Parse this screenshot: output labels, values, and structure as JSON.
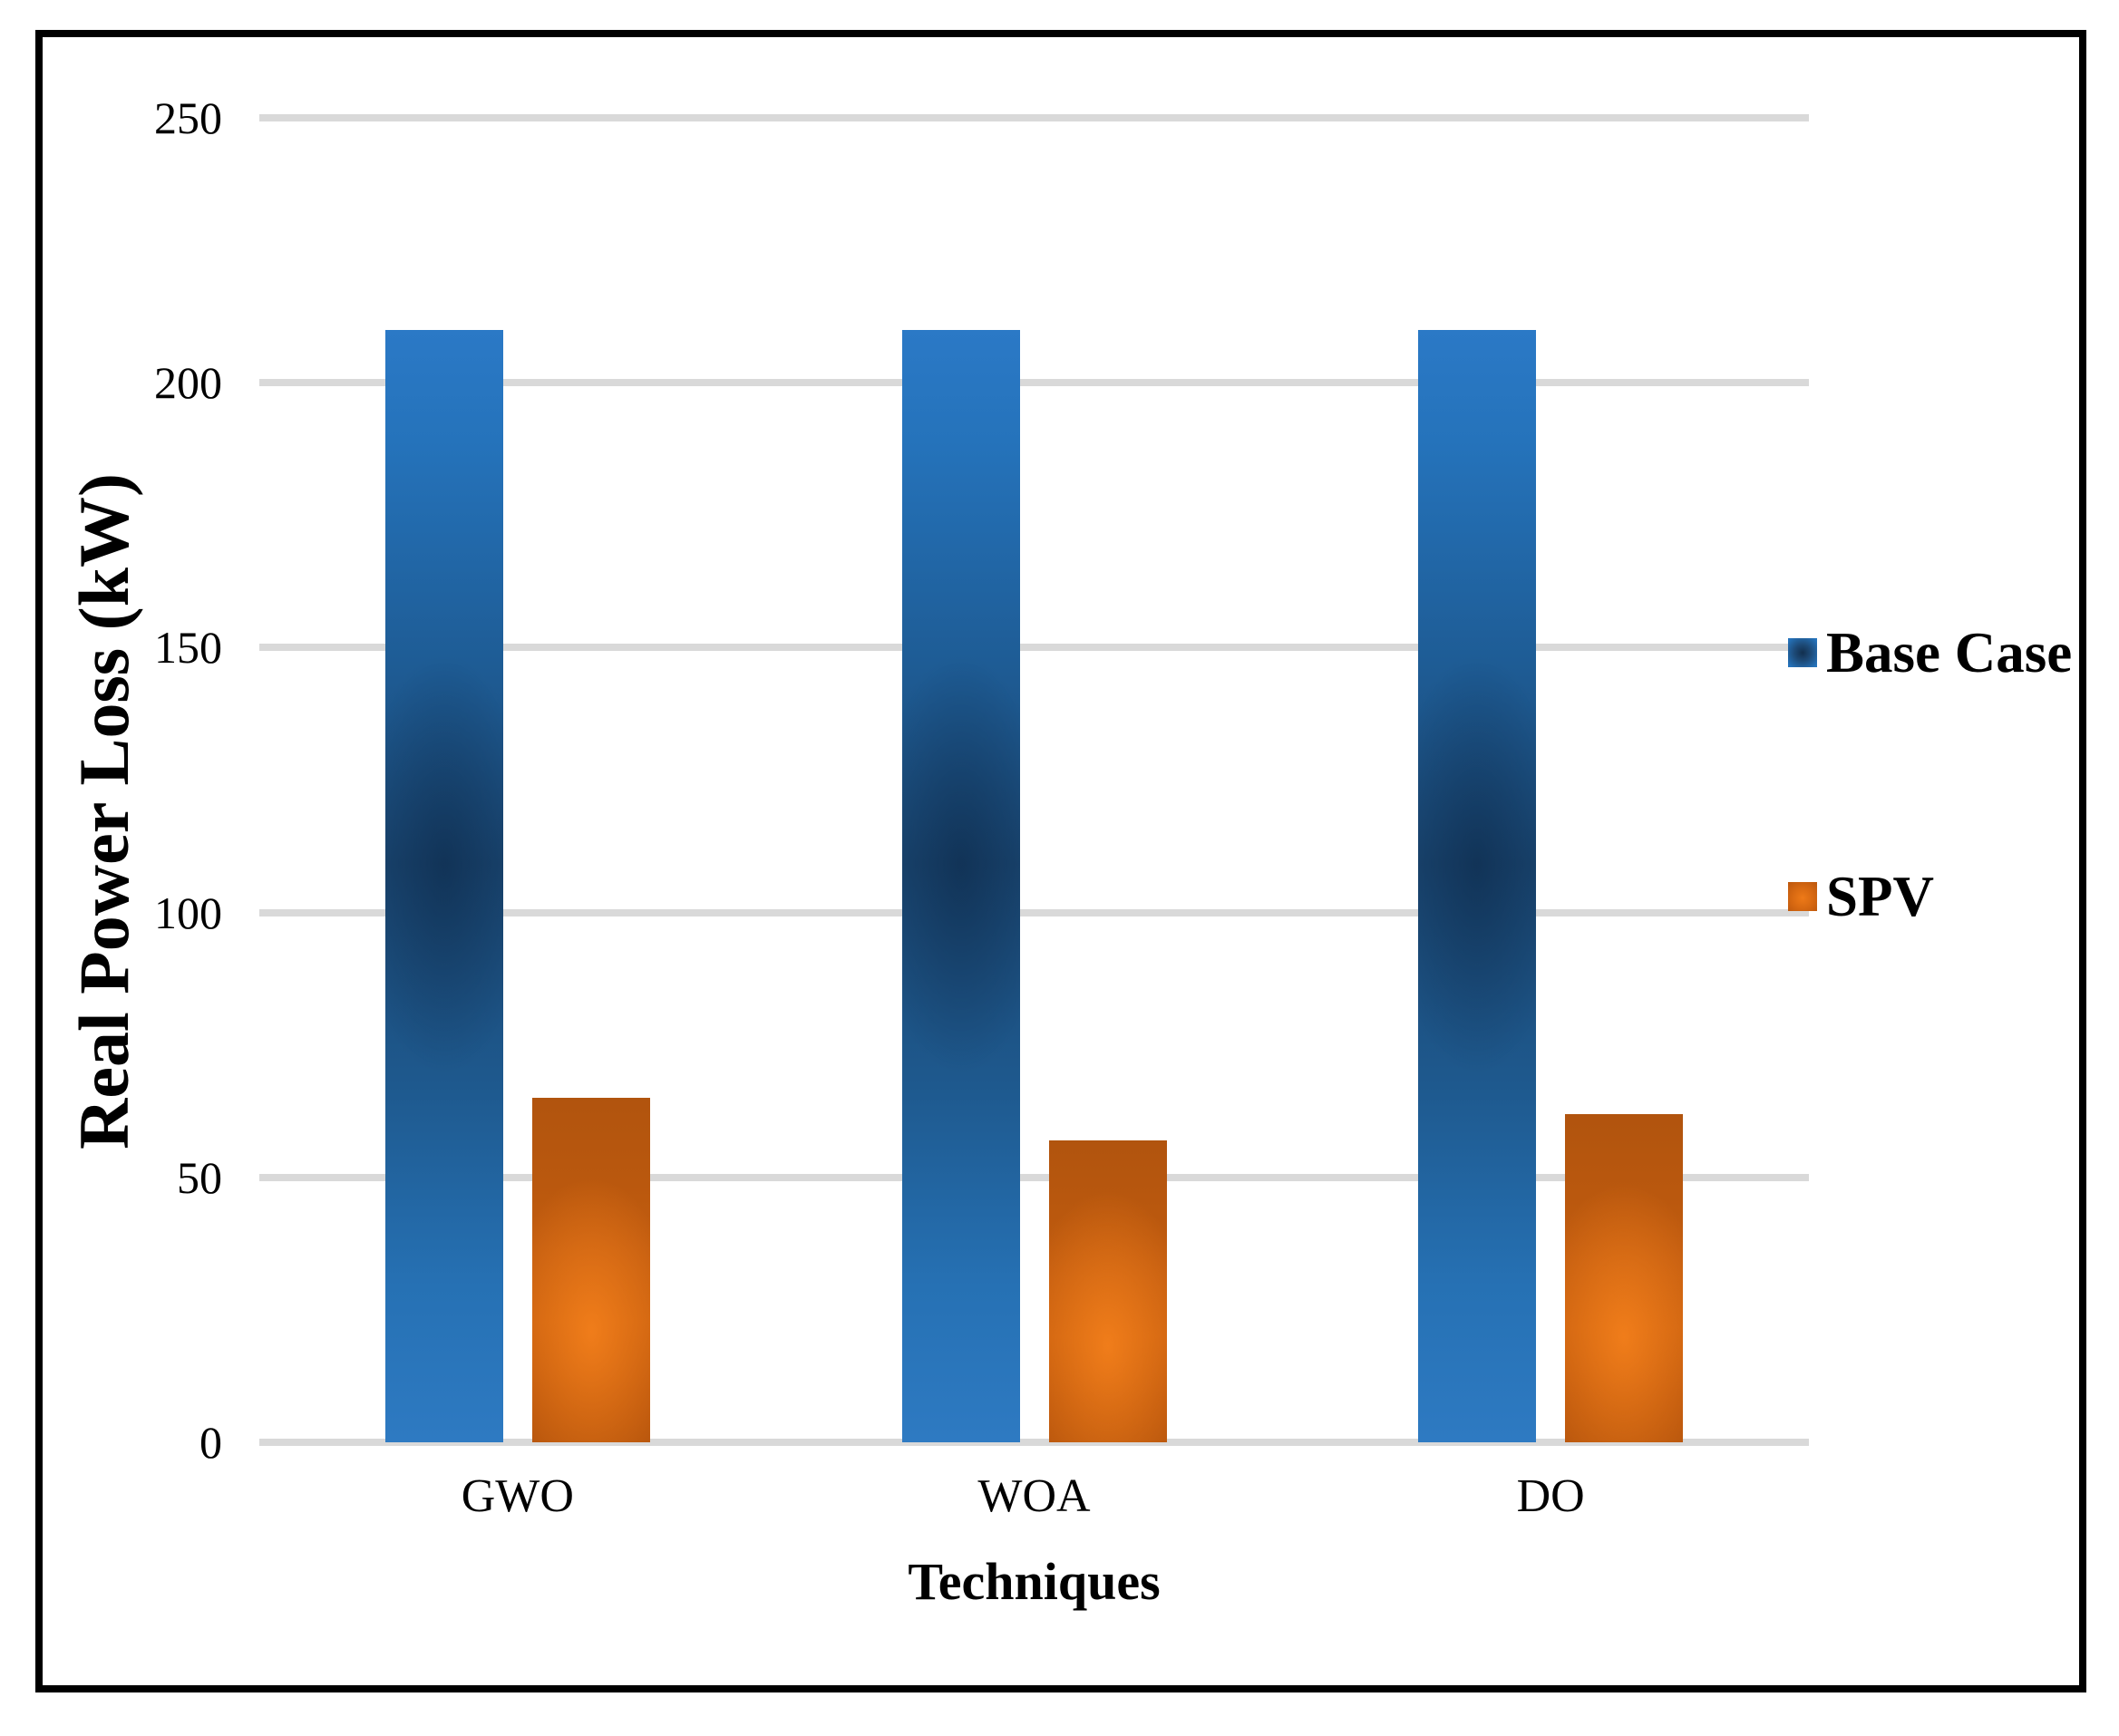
{
  "chart_data": {
    "type": "bar",
    "title": "",
    "categories": [
      "GWO",
      "WOA",
      "DO"
    ],
    "series": [
      {
        "name": "Base Case",
        "values": [
          210,
          210,
          210
        ],
        "color": "#2573BB"
      },
      {
        "name": "SPV",
        "values": [
          65,
          57,
          62
        ],
        "color": "#C9600F"
      }
    ],
    "xlabel": "Techniques",
    "ylabel": "Real Power Loss (kW)",
    "ylim": [
      0,
      250
    ],
    "yticks": [
      0,
      50,
      100,
      150,
      200,
      250
    ],
    "grid": "horizontal",
    "gridline_color": "#D9D9D9",
    "frame_color": "#000000",
    "background_color": "#FFFFFF",
    "legend_position": "right",
    "legend": {
      "items": [
        {
          "label": "Base Case",
          "color": "#2573BB"
        },
        {
          "label": "SPV",
          "color": "#C9600F"
        }
      ]
    }
  }
}
